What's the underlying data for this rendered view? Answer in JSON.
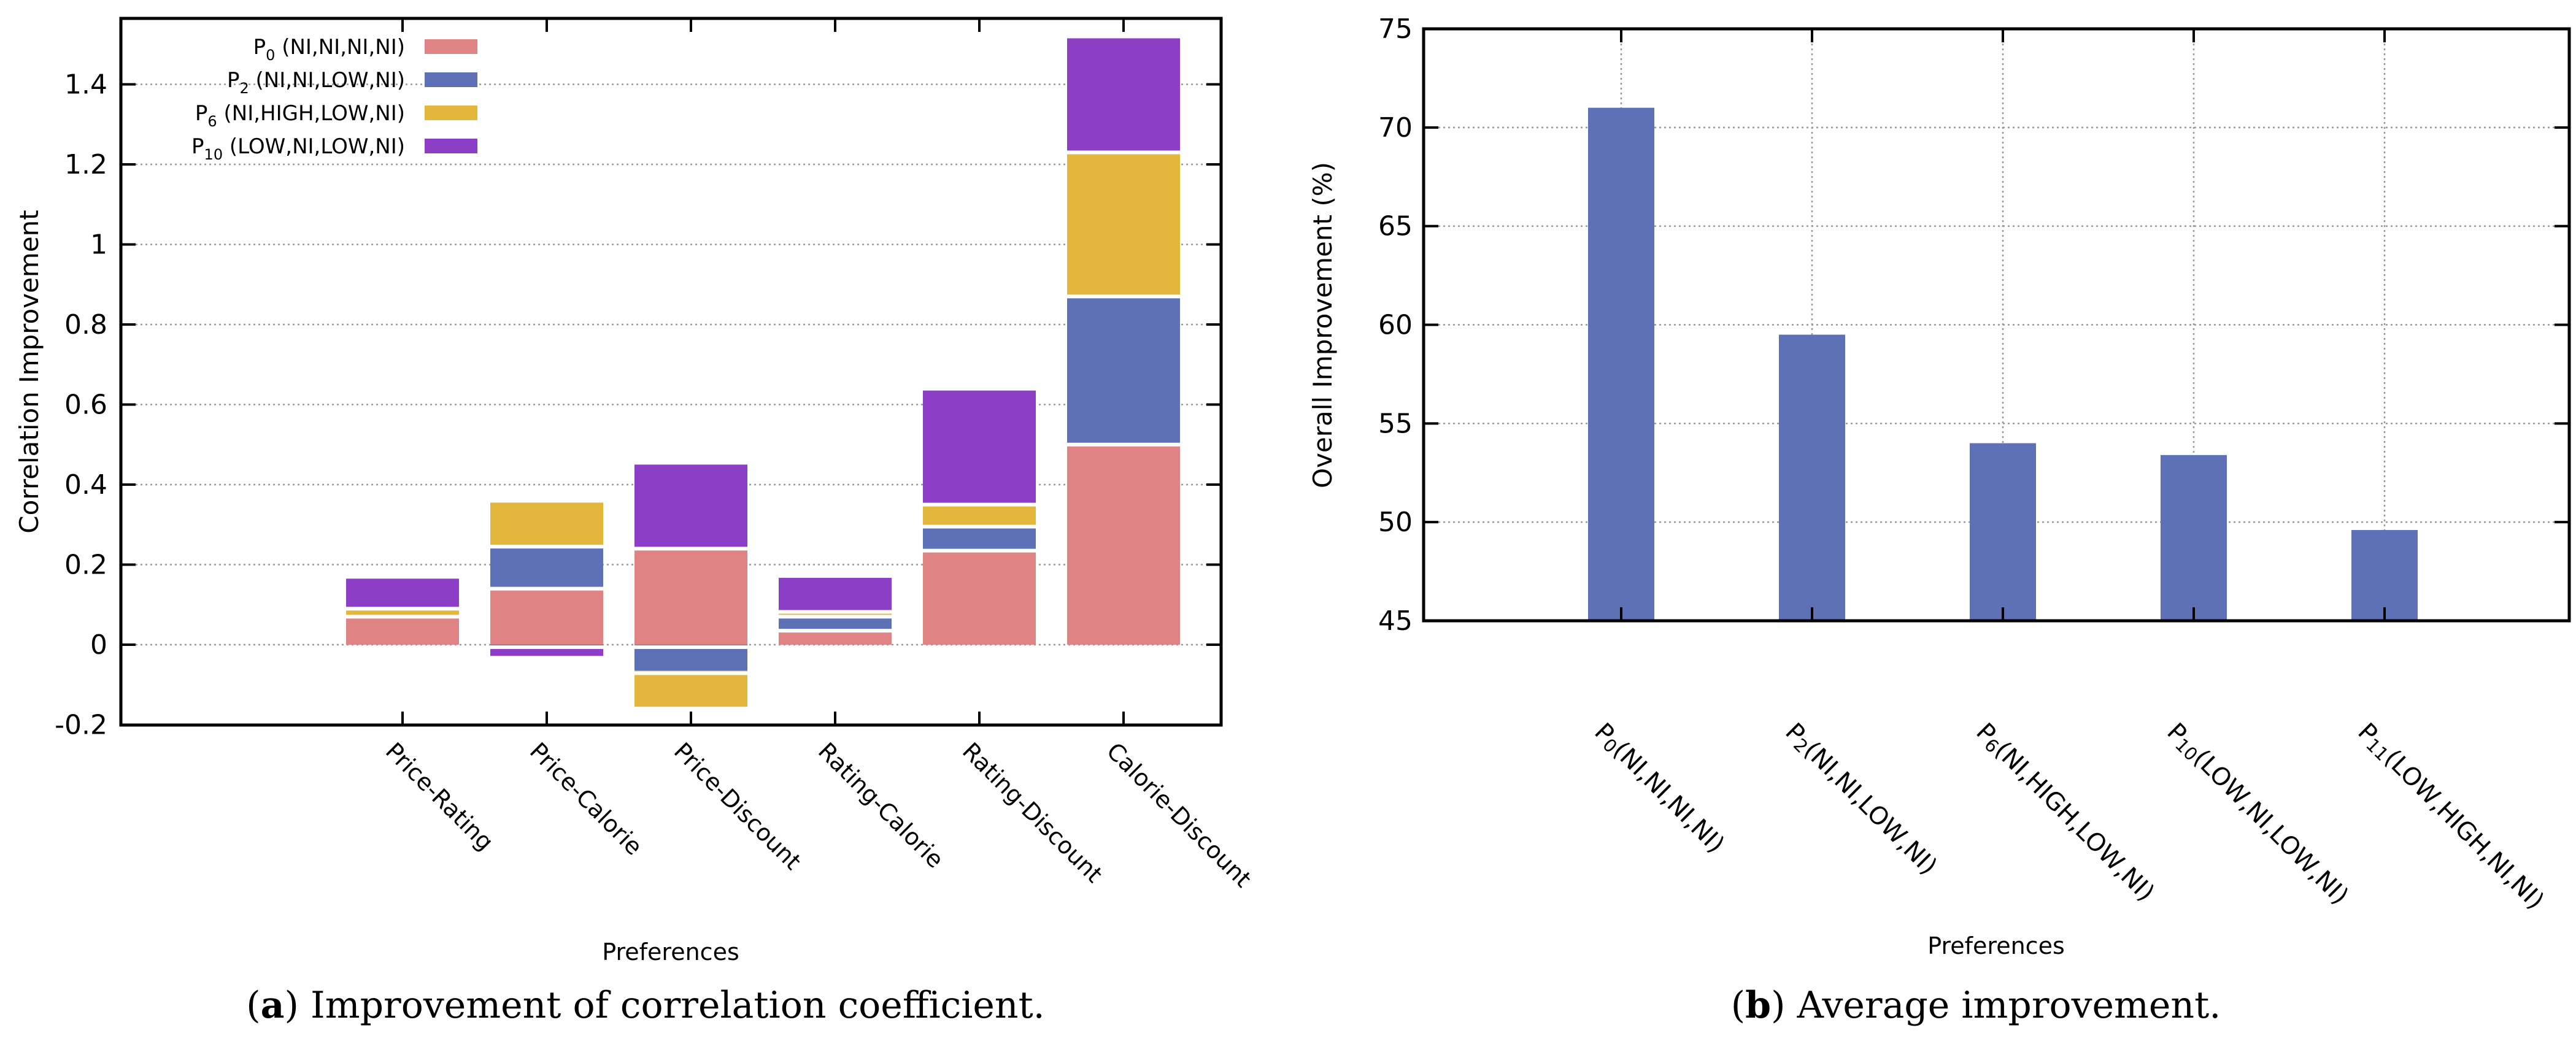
{
  "figure": {
    "caption_a": {
      "open": "(",
      "letter": "a",
      "close": ") ",
      "text": "Improvement of correlation coefficient."
    },
    "caption_b": {
      "open": "(",
      "letter": "b",
      "close": ") ",
      "text": "Average improvement."
    }
  },
  "palette": {
    "p0_salmon": "#e08384",
    "p2_blue": "#5e71b6",
    "p6_gold": "#e2b73b",
    "p10_purple": "#8d3ec6",
    "grid_gray": "#999999",
    "axis_black": "#000000",
    "segment_gap_white": "#ffffff"
  },
  "chart_data": [
    {
      "type": "bar",
      "stacked": true,
      "title": "",
      "xlabel": "Preferences",
      "ylabel": "Correlation Improvement",
      "ylim": [
        -0.2,
        1.565
      ],
      "yticks": [
        -0.2,
        0,
        0.2,
        0.4,
        0.6,
        0.8,
        1,
        1.2,
        1.4
      ],
      "ytick_labels": [
        "-0.2",
        "0",
        "0.2",
        "0.4",
        "0.6",
        "0.8",
        "1",
        "1.2",
        "1.4"
      ],
      "grid": "horizontal-dashed",
      "legend_position": "top-left-inside",
      "categories": [
        "Price-Rating",
        "Price-Calorie",
        "Price-Discount",
        "Rating-Calorie",
        "Rating-Discount",
        "Calorie-Discount"
      ],
      "series": [
        {
          "text": "P0 (NI,NI,NI,NI)",
          "label": {
            "prefix": "P",
            "sub": "0",
            "rest": " (NI,NI,NI,NI)"
          },
          "color": "#e08384",
          "values": [
            0.07,
            0.14,
            0.24,
            0.035,
            0.235,
            0.5
          ]
        },
        {
          "text": "P2 (NI,NI,LOW,NI)",
          "label": {
            "prefix": "P",
            "sub": "2",
            "rest": " (NI,NI,LOW,NI)"
          },
          "color": "#5e71b6",
          "values": [
            0.0,
            0.105,
            -0.065,
            0.035,
            0.06,
            0.37
          ]
        },
        {
          "text": "P6 (NI,HIGH,LOW,NI)",
          "label": {
            "prefix": "P",
            "sub": "6",
            "rest": " (NI,HIGH,LOW,NI)"
          },
          "color": "#e2b73b",
          "values": [
            0.02,
            0.11,
            -0.09,
            0.012,
            0.055,
            0.36
          ]
        },
        {
          "text": "P10 (LOW,NI,LOW,NI)",
          "label": {
            "prefix": "P",
            "sub": "10",
            "rest": " (LOW,NI,LOW,NI)"
          },
          "color": "#8d3ec6",
          "values": [
            0.075,
            -0.028,
            0.21,
            0.085,
            0.285,
            0.285
          ]
        }
      ]
    },
    {
      "type": "bar",
      "stacked": false,
      "title": "",
      "xlabel": "Preferences",
      "ylabel": "Overall Improvement (%)",
      "ylim": [
        45,
        75
      ],
      "yticks": [
        45,
        50,
        55,
        60,
        65,
        70,
        75
      ],
      "ytick_labels": [
        "45",
        "50",
        "55",
        "60",
        "65",
        "70",
        "75"
      ],
      "grid": "both-dashed",
      "bar_color": "#5e71b6",
      "categories": [
        {
          "text": "P0(NI,NI,NI,NI)",
          "prefix": "P",
          "sub": "0",
          "rest": "(NI,NI,NI,NI)"
        },
        {
          "text": "P2(NI,NI,LOW,NI)",
          "prefix": "P",
          "sub": "2",
          "rest": "(NI,NI,LOW,NI)"
        },
        {
          "text": "P6(NI,HIGH,LOW,NI)",
          "prefix": "P",
          "sub": "6",
          "rest": "(NI,HIGH,LOW,NI)"
        },
        {
          "text": "P10(LOW,NI,LOW,NI)",
          "prefix": "P",
          "sub": "10",
          "rest": "(LOW,NI,LOW,NI)"
        },
        {
          "text": "P11(LOW,HIGH,NI,NI)",
          "prefix": "P",
          "sub": "11",
          "rest": "(LOW,HIGH,NI,NI)"
        }
      ],
      "values": [
        71.0,
        59.5,
        54.0,
        53.4,
        49.6
      ]
    }
  ]
}
